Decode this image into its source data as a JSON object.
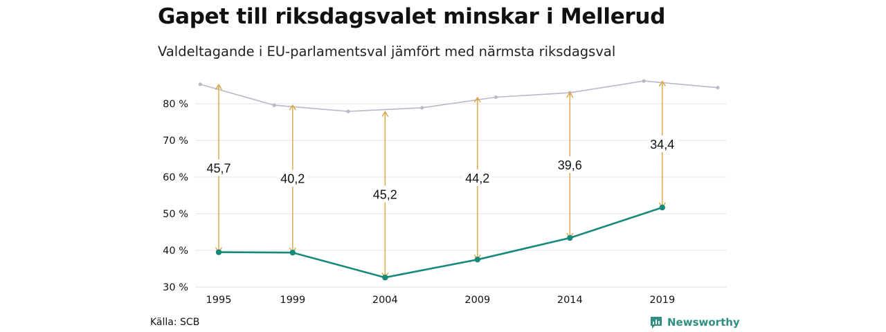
{
  "title": "Gapet till riksdagsvalet minskar i Mellerud",
  "subtitle": "Valdeltagande i EU-parlamentsval jämfört med närmsta riksdagsval",
  "source": "Källa: SCB",
  "brand": {
    "name": "Newsworthy",
    "icon": "bar-chart-speech-icon",
    "color": "#2f8f83"
  },
  "colors": {
    "eu_line": "#17897b",
    "riksdag_line": "#bdb7c8",
    "arrow": "#d9a441",
    "grid": "#e3e3e3"
  },
  "chart_data": {
    "type": "line",
    "x_ticks": [
      "1995",
      "1999",
      "2004",
      "2009",
      "2014",
      "2019"
    ],
    "ylim": [
      30,
      90
    ],
    "y_ticks": [
      30,
      40,
      50,
      60,
      70,
      80
    ],
    "y_tick_labels": [
      "30 %",
      "40 %",
      "50 %",
      "60 %",
      "70 %",
      "80 %"
    ],
    "grid": true,
    "series": [
      {
        "key": "eu",
        "x": [
          1995,
          1999,
          2004,
          2009,
          2014,
          2019
        ],
        "values": [
          39.5,
          39.4,
          32.6,
          37.5,
          43.4,
          51.7
        ]
      },
      {
        "key": "riksdag",
        "x": [
          1994,
          1998,
          2002,
          2006,
          2010,
          2014,
          2018,
          2022
        ],
        "values": [
          85.3,
          79.6,
          77.9,
          78.9,
          81.8,
          83.0,
          86.2,
          84.4
        ]
      }
    ],
    "gaps": [
      {
        "year": 1995,
        "label": "45,7",
        "from": 39.5,
        "to": 85.2
      },
      {
        "year": 1999,
        "label": "40,2",
        "from": 39.4,
        "to": 79.6
      },
      {
        "year": 2004,
        "label": "45,2",
        "from": 32.6,
        "to": 77.8
      },
      {
        "year": 2009,
        "label": "44,2",
        "from": 37.5,
        "to": 81.7
      },
      {
        "year": 2014,
        "label": "39,6",
        "from": 43.4,
        "to": 83.0
      },
      {
        "year": 2019,
        "label": "34,4",
        "from": 51.7,
        "to": 86.1
      }
    ]
  }
}
